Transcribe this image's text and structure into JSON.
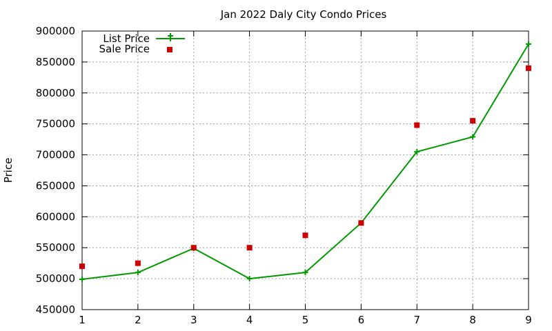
{
  "chart_data": {
    "type": "line",
    "title": "Jan 2022 Daly City Condo Prices",
    "xlabel": "",
    "ylabel": "Price",
    "x": [
      1,
      2,
      3,
      4,
      5,
      6,
      7,
      8,
      9
    ],
    "xlim": [
      1,
      9
    ],
    "ylim": [
      450000,
      900000
    ],
    "xticks": [
      1,
      2,
      3,
      4,
      5,
      6,
      7,
      8,
      9
    ],
    "yticks": [
      450000,
      500000,
      550000,
      600000,
      650000,
      700000,
      750000,
      800000,
      850000,
      900000
    ],
    "grid": true,
    "legend_position": "top-left",
    "series": [
      {
        "name": "List Price",
        "style": "line-with-plus-markers",
        "color": "#009900",
        "values": [
          499000,
          510000,
          549000,
          500000,
          510000,
          590000,
          705000,
          729000,
          879000
        ]
      },
      {
        "name": "Sale Price",
        "style": "square-markers",
        "color": "#cc0000",
        "values": [
          520000,
          525000,
          550000,
          550000,
          570000,
          590000,
          748000,
          755000,
          840000
        ]
      }
    ]
  }
}
